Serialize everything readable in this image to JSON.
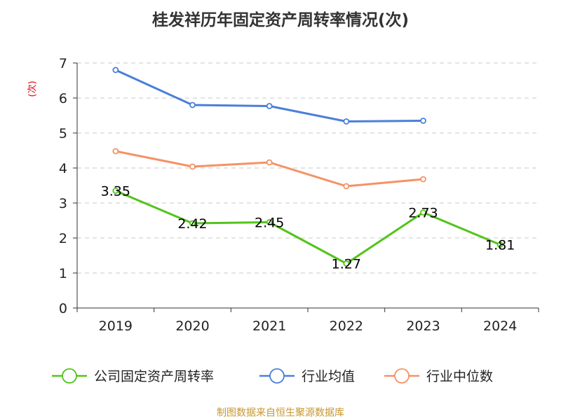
{
  "chart_data": {
    "type": "line",
    "title": "桂发祥历年固定资产周转率情况(次)",
    "ylabel": "(次)",
    "categories": [
      "2019",
      "2020",
      "2021",
      "2022",
      "2023",
      "2024"
    ],
    "ylim": [
      0,
      7
    ],
    "yticks": [
      "0",
      "1",
      "2",
      "3",
      "4",
      "5",
      "6",
      "7"
    ],
    "grid": true,
    "legend_position": "bottom",
    "series": [
      {
        "name": "公司固定资产周转率",
        "color": "#52c41a",
        "values": [
          3.35,
          2.42,
          2.45,
          1.27,
          2.73,
          1.81
        ],
        "data_labels": [
          "3.35",
          "2.42",
          "2.45",
          "1.27",
          "2.73",
          "1.81"
        ]
      },
      {
        "name": "行业均值",
        "color": "#4a7fd9",
        "values": [
          6.8,
          5.8,
          5.77,
          5.33,
          5.35,
          null
        ]
      },
      {
        "name": "行业中位数",
        "color": "#f59263",
        "values": [
          4.48,
          4.04,
          4.16,
          3.48,
          3.68,
          null
        ]
      }
    ]
  },
  "source": "制图数据来自恒生聚源数据库"
}
